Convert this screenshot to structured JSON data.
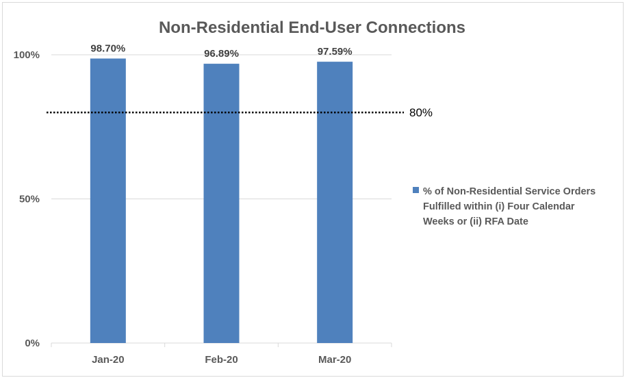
{
  "chart_data": {
    "type": "bar",
    "title": "Non-Residential End-User Connections",
    "categories": [
      "Jan-20",
      "Feb-20",
      "Mar-20"
    ],
    "series": [
      {
        "name": "% of Non-Residential Service Orders Fulfilled within (i) Four Calendar Weeks or (ii) RFA Date",
        "values": [
          98.7,
          96.89,
          97.59
        ],
        "labels": [
          "98.70%",
          "96.89%",
          "97.59%"
        ],
        "color": "#4f81bd"
      }
    ],
    "ylim": [
      0,
      100
    ],
    "yticks": [
      {
        "value": 0,
        "label": "0%"
      },
      {
        "value": 50,
        "label": "50%"
      },
      {
        "value": 100,
        "label": "100%"
      }
    ],
    "reference_line": {
      "value": 80,
      "label": "80%",
      "style": "dotted",
      "color": "#000000"
    },
    "grid": true,
    "legend_position": "right",
    "legend_lines": [
      "% of Non-Residential Service Orders",
      "Fulfilled within (i) Four Calendar",
      "Weeks or (ii) RFA Date"
    ]
  }
}
